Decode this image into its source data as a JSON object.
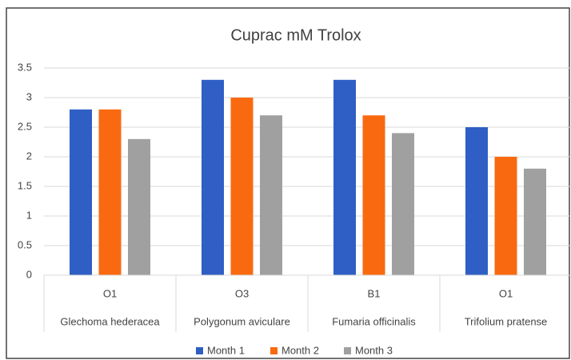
{
  "chart_data": {
    "type": "bar",
    "title": "Cuprac mM Trolox",
    "categories": [
      "Glechoma hederacea",
      "Polygonum aviculare",
      "Fumaria officinalis",
      "Trifolium pratense"
    ],
    "subcategories": [
      "O1",
      "O3",
      "B1",
      "O1"
    ],
    "series": [
      {
        "name": "Month 1",
        "color": "#2f5fc4",
        "values": [
          2.8,
          3.3,
          3.3,
          2.5
        ]
      },
      {
        "name": "Month 2",
        "color": "#f96a10",
        "values": [
          2.8,
          3.0,
          2.7,
          2.0
        ]
      },
      {
        "name": "Month 3",
        "color": "#a0a0a0",
        "values": [
          2.3,
          2.7,
          2.4,
          1.8
        ]
      }
    ],
    "ylim": [
      0,
      3.5
    ],
    "yticks": [
      0,
      0.5,
      1,
      1.5,
      2,
      2.5,
      3,
      3.5
    ],
    "grid": true,
    "legend": "bottom"
  }
}
